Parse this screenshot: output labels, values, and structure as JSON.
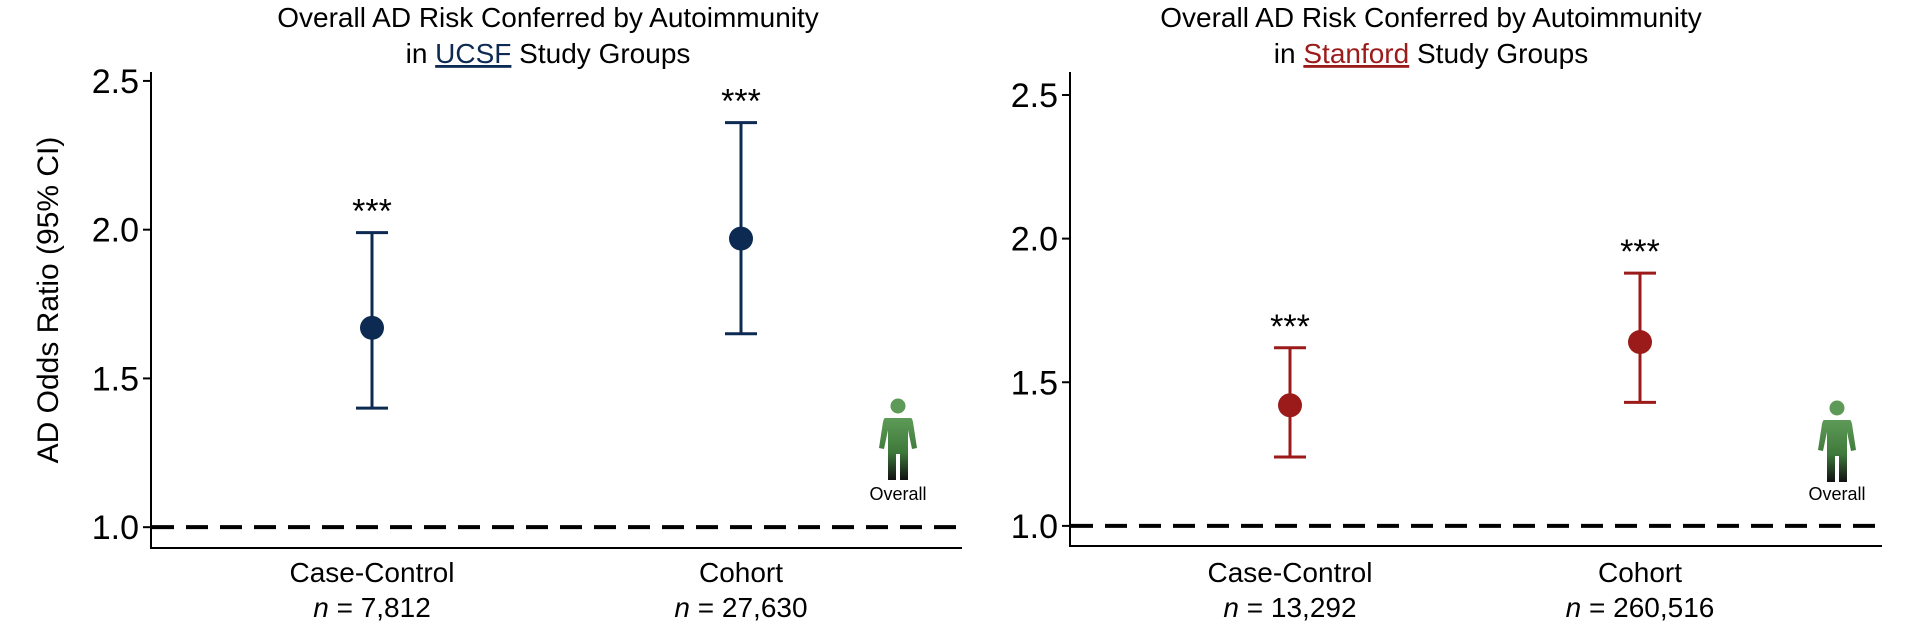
{
  "chart_data": [
    {
      "type": "errorbar",
      "title_line1": "Overall AD Risk Conferred by Autoimmunity",
      "title_prefix": "in ",
      "title_site": "UCSF",
      "title_suffix": " Study Groups",
      "ylabel": "AD Odds Ratio (95% CI)",
      "ylim": [
        0.93,
        2.53
      ],
      "yticks": [
        "1.0",
        "1.5",
        "2.0",
        "2.5"
      ],
      "reference_line": 1.0,
      "color": "#0d2a52",
      "categories": [
        "Case-Control",
        "Cohort"
      ],
      "n_prefix": "n",
      "n_values": [
        "= 7,812",
        "= 27,630"
      ],
      "points": [
        {
          "estimate": 1.67,
          "lower": 1.4,
          "upper": 1.99,
          "significance": "***"
        },
        {
          "estimate": 1.97,
          "lower": 1.65,
          "upper": 2.36,
          "significance": "***"
        }
      ],
      "icon": {
        "name": "person-icon",
        "label": "Overall",
        "color": "#4f8a4a"
      }
    },
    {
      "type": "errorbar",
      "title_line1": "Overall AD Risk Conferred by Autoimmunity",
      "title_prefix": "in ",
      "title_site": "Stanford",
      "title_suffix": " Study Groups",
      "ylabel": "",
      "ylim": [
        0.93,
        2.58
      ],
      "yticks": [
        "1.0",
        "1.5",
        "2.0",
        "2.5"
      ],
      "reference_line": 1.0,
      "color": "#9b1b1b",
      "categories": [
        "Case-Control",
        "Cohort"
      ],
      "n_prefix": "n",
      "n_values": [
        "= 13,292",
        "= 260,516"
      ],
      "points": [
        {
          "estimate": 1.42,
          "lower": 1.24,
          "upper": 1.62,
          "significance": "***"
        },
        {
          "estimate": 1.64,
          "lower": 1.43,
          "upper": 1.88,
          "significance": "***"
        }
      ],
      "icon": {
        "name": "person-icon",
        "label": "Overall",
        "color": "#4f8a4a"
      }
    }
  ]
}
